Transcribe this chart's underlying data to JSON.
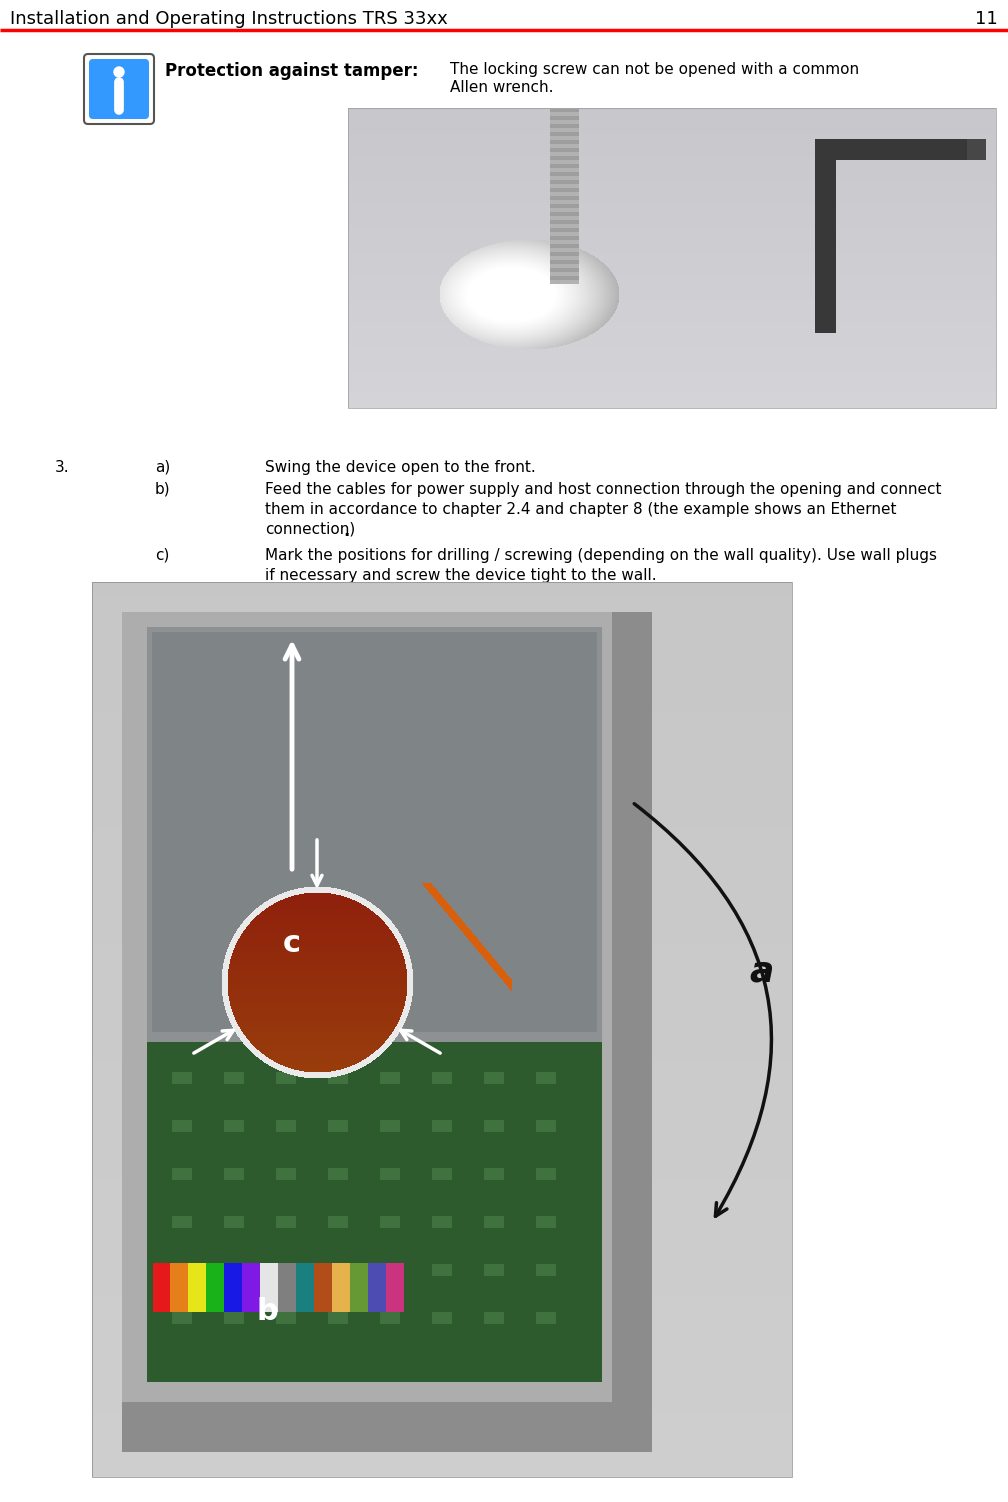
{
  "header_text": "Installation and Operating Instructions TRS 33xx",
  "header_page": "11",
  "header_line_color": "#ff0000",
  "header_text_color": "#000000",
  "bg_color": "#ffffff",
  "info_box_label": "Protection against tamper:",
  "info_box_text_line1": "The locking screw can not be opened with a common",
  "info_box_text_line2": "Allen wrench.",
  "info_icon_bg": "#3399ff",
  "info_icon_border": "#000000",
  "step_number": "3.",
  "step_a_label": "a)",
  "step_a_text": "Swing the device open to the front.",
  "step_b_label": "b)",
  "step_b_line1": "Feed the cables for power supply and host connection through the opening and connect",
  "step_b_line2": "them in accordance to chapter 2.4 and chapter 8 (the example shows an Ethernet",
  "step_b_line3": "connection).",
  "step_c_label": "c)",
  "step_c_line1": "Mark the positions for drilling / screwing (depending on the wall quality). Use wall plugs",
  "step_c_line2": "if necessary and screw the device tight to the wall.",
  "font_size_header": 13,
  "font_size_body": 11,
  "photo1_bg": "#c8ccd0",
  "photo2_bg": "#c8cac8",
  "device_body": "#a8aaa8",
  "device_inner": "#888a88",
  "pcb_green": "#2a5c2a"
}
